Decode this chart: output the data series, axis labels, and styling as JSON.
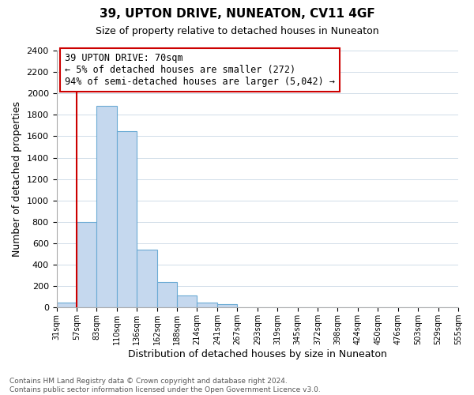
{
  "title": "39, UPTON DRIVE, NUNEATON, CV11 4GF",
  "subtitle": "Size of property relative to detached houses in Nuneaton",
  "xlabel": "Distribution of detached houses by size in Nuneaton",
  "ylabel": "Number of detached properties",
  "bar_values": [
    50,
    800,
    1880,
    1650,
    540,
    235,
    110,
    50,
    30,
    0,
    0,
    0,
    0,
    0,
    0,
    0,
    0,
    0,
    0,
    0
  ],
  "bin_labels": [
    "31sqm",
    "57sqm",
    "83sqm",
    "110sqm",
    "136sqm",
    "162sqm",
    "188sqm",
    "214sqm",
    "241sqm",
    "267sqm",
    "293sqm",
    "319sqm",
    "345sqm",
    "372sqm",
    "398sqm",
    "424sqm",
    "450sqm",
    "476sqm",
    "503sqm",
    "529sqm",
    "555sqm"
  ],
  "bar_color": "#c5d8ee",
  "bar_edge_color": "#6aaad4",
  "vline_color": "#cc0000",
  "vline_x_idx": 1,
  "ylim": [
    0,
    2400
  ],
  "yticks": [
    0,
    200,
    400,
    600,
    800,
    1000,
    1200,
    1400,
    1600,
    1800,
    2000,
    2200,
    2400
  ],
  "annotation_title": "39 UPTON DRIVE: 70sqm",
  "annotation_line1": "← 5% of detached houses are smaller (272)",
  "annotation_line2": "94% of semi-detached houses are larger (5,042) →",
  "annotation_box_color": "#ffffff",
  "annotation_box_edge": "#cc0000",
  "footer_line1": "Contains HM Land Registry data © Crown copyright and database right 2024.",
  "footer_line2": "Contains public sector information licensed under the Open Government Licence v3.0.",
  "bg_color": "#ffffff",
  "grid_color": "#d0dce8"
}
